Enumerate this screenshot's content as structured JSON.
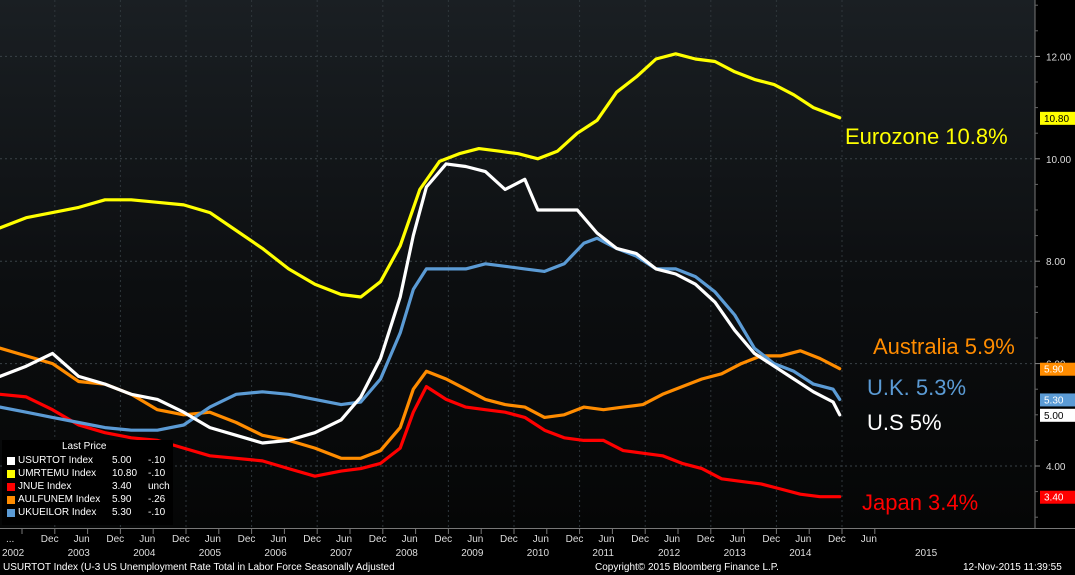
{
  "footer": {
    "description": "USURTOT Index (U-3 US Unemployment Rate Total in Labor Force Seasonally Adjusted",
    "copyright": "Copyright© 2015 Bloomberg Finance L.P.",
    "timestamp": "12-Nov-2015 11:39:55"
  },
  "legend": {
    "title": "Last Price",
    "rows": [
      {
        "ticker": "USURTOT Index",
        "last": "5.00",
        "chg": "-.10",
        "color": "#ffffff"
      },
      {
        "ticker": "UMRTEMU Index",
        "last": "10.80",
        "chg": "-.10",
        "color": "#ffff00"
      },
      {
        "ticker": "JNUE Index",
        "last": "3.40",
        "chg": "unch",
        "color": "#ff0000"
      },
      {
        "ticker": "AULFUNEM Index",
        "last": "5.90",
        "chg": "-.26",
        "color": "#ff8c00"
      },
      {
        "ticker": "UKUEILOR Index",
        "last": "5.30",
        "chg": "-.10",
        "color": "#5b9bd5"
      }
    ]
  },
  "chart_data": {
    "type": "line",
    "ylim": [
      3.0,
      13.0
    ],
    "xlim": [
      2002.8,
      2016.1
    ],
    "y_ticks": [
      "4.00",
      "6.00",
      "8.00",
      "10.00",
      "12.00"
    ],
    "x_tick_top": [
      "...",
      "Dec",
      "Jun",
      "Dec",
      "Jun",
      "Dec",
      "Jun",
      "Dec",
      "Jun",
      "Dec",
      "Jun",
      "Dec",
      "Jun",
      "Dec",
      "Jun",
      "Dec",
      "Jun",
      "Dec",
      "Jun",
      "Dec",
      "Jun",
      "Dec",
      "Jun",
      "Dec",
      "Jun",
      "Dec",
      "Jun"
    ],
    "x_tick_bottom": [
      "2002",
      "2003",
      "2004",
      "2005",
      "2006",
      "2007",
      "2008",
      "2009",
      "2010",
      "2011",
      "2012",
      "2013",
      "2014",
      "2015"
    ],
    "grid": true,
    "legend_placement": "bottom-left",
    "series": [
      {
        "name": "Eurozone 10.8%",
        "ticker": "UMRTEMU Index",
        "color": "#ffff00",
        "last_label": "10.80",
        "points": [
          [
            2002.8,
            8.65
          ],
          [
            2003.2,
            8.85
          ],
          [
            2003.6,
            8.95
          ],
          [
            2004.0,
            9.05
          ],
          [
            2004.4,
            9.2
          ],
          [
            2004.8,
            9.2
          ],
          [
            2005.2,
            9.15
          ],
          [
            2005.6,
            9.1
          ],
          [
            2006.0,
            8.95
          ],
          [
            2006.4,
            8.6
          ],
          [
            2006.8,
            8.25
          ],
          [
            2007.2,
            7.85
          ],
          [
            2007.6,
            7.55
          ],
          [
            2008.0,
            7.35
          ],
          [
            2008.3,
            7.3
          ],
          [
            2008.6,
            7.6
          ],
          [
            2008.9,
            8.3
          ],
          [
            2009.2,
            9.4
          ],
          [
            2009.5,
            9.95
          ],
          [
            2009.8,
            10.1
          ],
          [
            2010.1,
            10.2
          ],
          [
            2010.4,
            10.15
          ],
          [
            2010.7,
            10.1
          ],
          [
            2011.0,
            10.0
          ],
          [
            2011.3,
            10.15
          ],
          [
            2011.6,
            10.5
          ],
          [
            2011.9,
            10.75
          ],
          [
            2012.2,
            11.3
          ],
          [
            2012.5,
            11.6
          ],
          [
            2012.8,
            11.95
          ],
          [
            2013.1,
            12.05
          ],
          [
            2013.4,
            11.95
          ],
          [
            2013.7,
            11.9
          ],
          [
            2014.0,
            11.7
          ],
          [
            2014.3,
            11.55
          ],
          [
            2014.6,
            11.45
          ],
          [
            2014.9,
            11.25
          ],
          [
            2015.2,
            11.0
          ],
          [
            2015.5,
            10.85
          ],
          [
            2015.6,
            10.8
          ]
        ]
      },
      {
        "name": "Australia 5.9%",
        "ticker": "AULFUNEM Index",
        "color": "#ff8c00",
        "last_label": "5.90",
        "points": [
          [
            2002.8,
            6.3
          ],
          [
            2003.2,
            6.15
          ],
          [
            2003.6,
            6.0
          ],
          [
            2004.0,
            5.65
          ],
          [
            2004.4,
            5.6
          ],
          [
            2004.8,
            5.4
          ],
          [
            2005.2,
            5.1
          ],
          [
            2005.6,
            5.0
          ],
          [
            2006.0,
            5.05
          ],
          [
            2006.4,
            4.85
          ],
          [
            2006.8,
            4.6
          ],
          [
            2007.2,
            4.5
          ],
          [
            2007.6,
            4.35
          ],
          [
            2008.0,
            4.15
          ],
          [
            2008.3,
            4.15
          ],
          [
            2008.6,
            4.3
          ],
          [
            2008.9,
            4.75
          ],
          [
            2009.1,
            5.5
          ],
          [
            2009.3,
            5.85
          ],
          [
            2009.6,
            5.7
          ],
          [
            2009.9,
            5.5
          ],
          [
            2010.2,
            5.3
          ],
          [
            2010.5,
            5.2
          ],
          [
            2010.8,
            5.15
          ],
          [
            2011.1,
            4.95
          ],
          [
            2011.4,
            5.0
          ],
          [
            2011.7,
            5.15
          ],
          [
            2012.0,
            5.1
          ],
          [
            2012.3,
            5.15
          ],
          [
            2012.6,
            5.2
          ],
          [
            2012.9,
            5.4
          ],
          [
            2013.2,
            5.55
          ],
          [
            2013.5,
            5.7
          ],
          [
            2013.8,
            5.8
          ],
          [
            2014.1,
            6.0
          ],
          [
            2014.4,
            6.15
          ],
          [
            2014.7,
            6.15
          ],
          [
            2015.0,
            6.25
          ],
          [
            2015.3,
            6.1
          ],
          [
            2015.6,
            5.9
          ]
        ]
      },
      {
        "name": "Japan 3.4%",
        "ticker": "JNUE Index",
        "color": "#ff0000",
        "last_label": "3.40",
        "points": [
          [
            2002.8,
            5.4
          ],
          [
            2003.2,
            5.35
          ],
          [
            2003.6,
            5.1
          ],
          [
            2004.0,
            4.8
          ],
          [
            2004.4,
            4.65
          ],
          [
            2004.8,
            4.55
          ],
          [
            2005.2,
            4.5
          ],
          [
            2005.6,
            4.35
          ],
          [
            2006.0,
            4.2
          ],
          [
            2006.4,
            4.15
          ],
          [
            2006.8,
            4.1
          ],
          [
            2007.2,
            3.95
          ],
          [
            2007.6,
            3.8
          ],
          [
            2008.0,
            3.9
          ],
          [
            2008.3,
            3.95
          ],
          [
            2008.6,
            4.05
          ],
          [
            2008.9,
            4.35
          ],
          [
            2009.1,
            5.05
          ],
          [
            2009.3,
            5.55
          ],
          [
            2009.6,
            5.3
          ],
          [
            2009.9,
            5.15
          ],
          [
            2010.2,
            5.1
          ],
          [
            2010.5,
            5.05
          ],
          [
            2010.8,
            4.95
          ],
          [
            2011.1,
            4.7
          ],
          [
            2011.4,
            4.55
          ],
          [
            2011.7,
            4.5
          ],
          [
            2012.0,
            4.5
          ],
          [
            2012.3,
            4.3
          ],
          [
            2012.6,
            4.25
          ],
          [
            2012.9,
            4.2
          ],
          [
            2013.2,
            4.05
          ],
          [
            2013.5,
            3.95
          ],
          [
            2013.8,
            3.75
          ],
          [
            2014.1,
            3.7
          ],
          [
            2014.4,
            3.65
          ],
          [
            2014.7,
            3.55
          ],
          [
            2015.0,
            3.45
          ],
          [
            2015.3,
            3.4
          ],
          [
            2015.6,
            3.4
          ]
        ]
      },
      {
        "name": "U.K. 5.3%",
        "ticker": "UKUEILOR Index",
        "color": "#5b9bd5",
        "last_label": "5.30",
        "points": [
          [
            2002.8,
            5.15
          ],
          [
            2003.2,
            5.05
          ],
          [
            2003.6,
            4.95
          ],
          [
            2004.0,
            4.85
          ],
          [
            2004.4,
            4.75
          ],
          [
            2004.8,
            4.7
          ],
          [
            2005.2,
            4.7
          ],
          [
            2005.6,
            4.8
          ],
          [
            2006.0,
            5.15
          ],
          [
            2006.4,
            5.4
          ],
          [
            2006.8,
            5.45
          ],
          [
            2007.2,
            5.4
          ],
          [
            2007.6,
            5.3
          ],
          [
            2008.0,
            5.2
          ],
          [
            2008.3,
            5.25
          ],
          [
            2008.6,
            5.7
          ],
          [
            2008.9,
            6.6
          ],
          [
            2009.1,
            7.45
          ],
          [
            2009.3,
            7.85
          ],
          [
            2009.6,
            7.85
          ],
          [
            2009.9,
            7.85
          ],
          [
            2010.2,
            7.95
          ],
          [
            2010.5,
            7.9
          ],
          [
            2010.8,
            7.85
          ],
          [
            2011.1,
            7.8
          ],
          [
            2011.4,
            7.95
          ],
          [
            2011.7,
            8.35
          ],
          [
            2011.9,
            8.45
          ],
          [
            2012.2,
            8.25
          ],
          [
            2012.5,
            8.1
          ],
          [
            2012.8,
            7.85
          ],
          [
            2013.1,
            7.85
          ],
          [
            2013.4,
            7.7
          ],
          [
            2013.7,
            7.4
          ],
          [
            2014.0,
            6.95
          ],
          [
            2014.3,
            6.3
          ],
          [
            2014.6,
            6.0
          ],
          [
            2014.9,
            5.85
          ],
          [
            2015.2,
            5.6
          ],
          [
            2015.5,
            5.5
          ],
          [
            2015.6,
            5.3
          ]
        ]
      },
      {
        "name": "U.S 5%",
        "ticker": "USURTOT Index",
        "color": "#ffffff",
        "last_label": "5.00",
        "points": [
          [
            2002.8,
            5.75
          ],
          [
            2003.2,
            5.95
          ],
          [
            2003.6,
            6.2
          ],
          [
            2004.0,
            5.75
          ],
          [
            2004.4,
            5.6
          ],
          [
            2004.8,
            5.4
          ],
          [
            2005.2,
            5.3
          ],
          [
            2005.6,
            5.05
          ],
          [
            2006.0,
            4.75
          ],
          [
            2006.4,
            4.6
          ],
          [
            2006.8,
            4.45
          ],
          [
            2007.2,
            4.5
          ],
          [
            2007.6,
            4.65
          ],
          [
            2008.0,
            4.9
          ],
          [
            2008.3,
            5.35
          ],
          [
            2008.6,
            6.1
          ],
          [
            2008.9,
            7.3
          ],
          [
            2009.1,
            8.5
          ],
          [
            2009.3,
            9.45
          ],
          [
            2009.6,
            9.9
          ],
          [
            2009.9,
            9.85
          ],
          [
            2010.2,
            9.75
          ],
          [
            2010.5,
            9.4
          ],
          [
            2010.8,
            9.6
          ],
          [
            2011.0,
            9.0
          ],
          [
            2011.3,
            9.0
          ],
          [
            2011.6,
            9.0
          ],
          [
            2011.9,
            8.55
          ],
          [
            2012.2,
            8.25
          ],
          [
            2012.5,
            8.15
          ],
          [
            2012.8,
            7.85
          ],
          [
            2013.1,
            7.75
          ],
          [
            2013.4,
            7.55
          ],
          [
            2013.7,
            7.2
          ],
          [
            2014.0,
            6.65
          ],
          [
            2014.3,
            6.2
          ],
          [
            2014.6,
            5.95
          ],
          [
            2014.9,
            5.7
          ],
          [
            2015.2,
            5.45
          ],
          [
            2015.5,
            5.25
          ],
          [
            2015.6,
            5.0
          ]
        ]
      }
    ]
  }
}
